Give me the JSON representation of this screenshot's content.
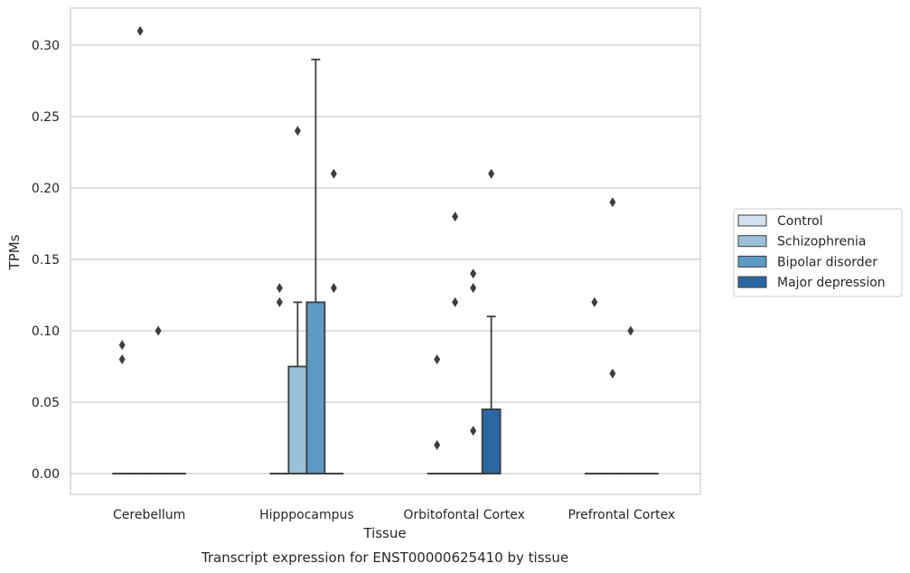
{
  "chart_data": {
    "type": "boxplot",
    "title": "",
    "caption": "Transcript expression for ENST00000625410 by tissue",
    "xlabel": "Tissue",
    "ylabel": "TPMs",
    "ylim": [
      -0.015,
      0.326
    ],
    "yticks": [
      "0.00",
      "0.05",
      "0.10",
      "0.15",
      "0.20",
      "0.25",
      "0.30"
    ],
    "grid": "horizontal",
    "legend_position": "right",
    "categories": [
      "Cerebellum",
      "Hipppocampus",
      "Orbitofontal Cortex",
      "Prefrontal Cortex"
    ],
    "series": [
      {
        "name": "Control",
        "color": "#d1e1ee",
        "boxes": [
          {
            "q1": 0,
            "median": 0,
            "q3": 0,
            "whisker_low": 0,
            "whisker_high": 0,
            "outliers": [
              0.09,
              0.08
            ]
          },
          {
            "q1": 0,
            "median": 0,
            "q3": 0,
            "whisker_low": 0,
            "whisker_high": 0,
            "outliers": [
              0.13,
              0.12
            ]
          },
          {
            "q1": 0,
            "median": 0,
            "q3": 0,
            "whisker_low": 0,
            "whisker_high": 0,
            "outliers": [
              0.08,
              0.02
            ]
          },
          {
            "q1": 0,
            "median": 0,
            "q3": 0,
            "whisker_low": 0,
            "whisker_high": 0,
            "outliers": [
              0.12
            ]
          }
        ]
      },
      {
        "name": "Schizophrenia",
        "color": "#9ac1d9",
        "boxes": [
          {
            "q1": 0,
            "median": 0,
            "q3": 0,
            "whisker_low": 0,
            "whisker_high": 0,
            "outliers": [
              0.31
            ]
          },
          {
            "q1": 0,
            "median": 0,
            "q3": 0.075,
            "whisker_low": 0,
            "whisker_high": 0.12,
            "outliers": [
              0.24
            ]
          },
          {
            "q1": 0,
            "median": 0,
            "q3": 0,
            "whisker_low": 0,
            "whisker_high": 0,
            "outliers": [
              0.18,
              0.12
            ]
          },
          {
            "q1": 0,
            "median": 0,
            "q3": 0,
            "whisker_low": 0,
            "whisker_high": 0,
            "outliers": [
              0.19,
              0.07
            ]
          }
        ]
      },
      {
        "name": "Bipolar disorder",
        "color": "#5c9ac4",
        "boxes": [
          {
            "q1": 0,
            "median": 0,
            "q3": 0,
            "whisker_low": 0,
            "whisker_high": 0,
            "outliers": [
              0.1
            ]
          },
          {
            "q1": 0,
            "median": 0,
            "q3": 0.12,
            "whisker_low": 0,
            "whisker_high": 0.29,
            "outliers": []
          },
          {
            "q1": 0,
            "median": 0,
            "q3": 0,
            "whisker_low": 0,
            "whisker_high": 0,
            "outliers": [
              0.14,
              0.13,
              0.03
            ]
          },
          {
            "q1": 0,
            "median": 0,
            "q3": 0,
            "whisker_low": 0,
            "whisker_high": 0,
            "outliers": [
              0.1
            ]
          }
        ]
      },
      {
        "name": "Major depression",
        "color": "#2b68a3",
        "boxes": [
          {
            "q1": 0,
            "median": 0,
            "q3": 0,
            "whisker_low": 0,
            "whisker_high": 0,
            "outliers": []
          },
          {
            "q1": 0,
            "median": 0,
            "q3": 0,
            "whisker_low": 0,
            "whisker_high": 0,
            "outliers": [
              0.21,
              0.13
            ]
          },
          {
            "q1": 0,
            "median": 0,
            "q3": 0.045,
            "whisker_low": 0,
            "whisker_high": 0.11,
            "outliers": [
              0.21
            ]
          },
          {
            "q1": 0,
            "median": 0,
            "q3": 0,
            "whisker_low": 0,
            "whisker_high": 0,
            "outliers": []
          }
        ]
      }
    ]
  }
}
